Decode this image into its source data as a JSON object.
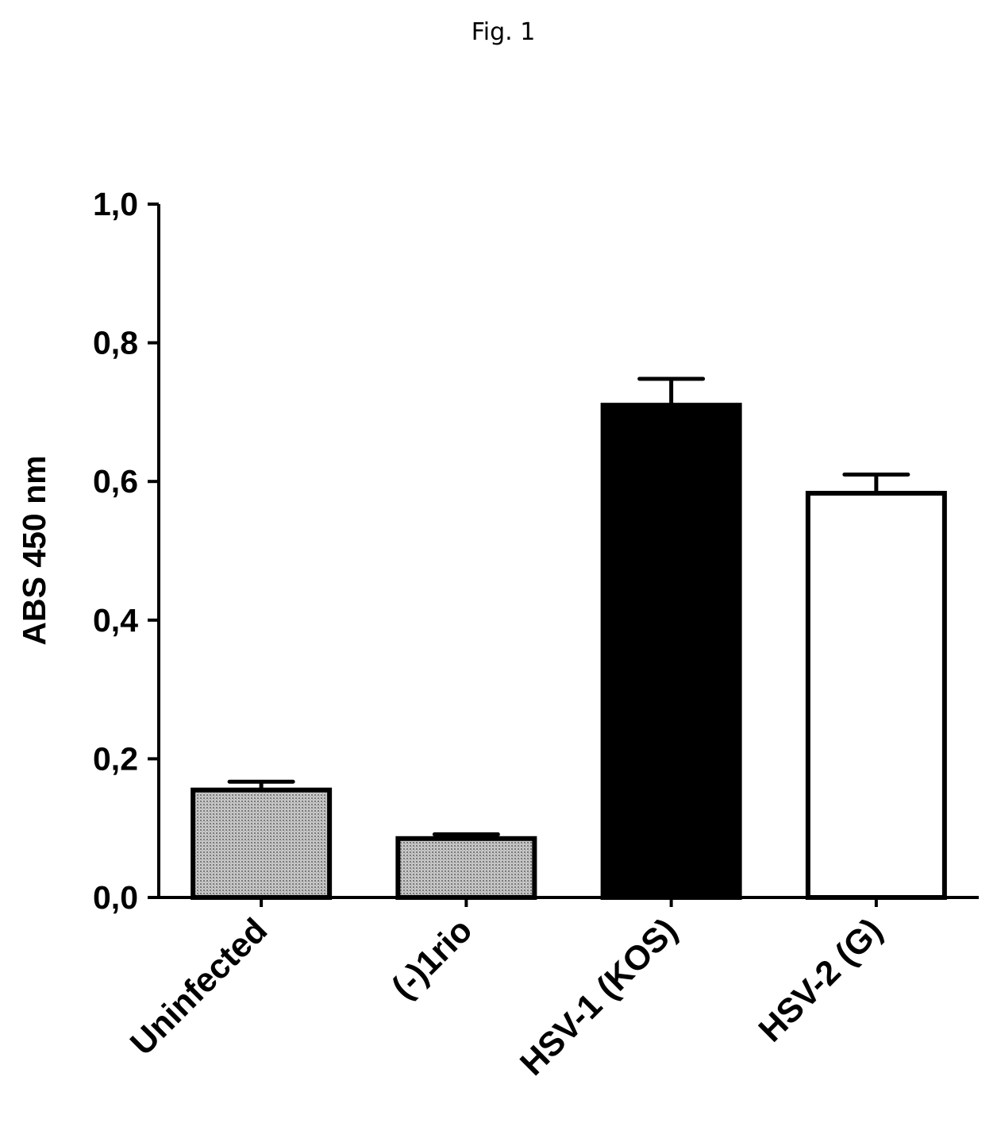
{
  "figure_label": "Fig. 1",
  "chart_data": {
    "type": "bar",
    "title": "",
    "xlabel": "",
    "ylabel": "ABS 450 nm",
    "ylim": [
      0,
      1.0
    ],
    "yticks": [
      0.0,
      0.2,
      0.4,
      0.6,
      0.8,
      1.0
    ],
    "ytick_labels": [
      "0,0",
      "0,2",
      "0,4",
      "0,6",
      "0,8",
      "1,0"
    ],
    "categories": [
      "Uninfected",
      "(-)1rio",
      "HSV-1 (KOS)",
      "HSV-2 (G)"
    ],
    "values": [
      0.155,
      0.085,
      0.71,
      0.583
    ],
    "errors": [
      0.012,
      0.006,
      0.038,
      0.027
    ],
    "bar_fills": [
      "#b0b0b0",
      "#b0b0b0",
      "#000000",
      "#ffffff"
    ],
    "bar_patterns": [
      "dotted-gray",
      "dotted-gray",
      "solid",
      "solid"
    ],
    "grid": false
  }
}
